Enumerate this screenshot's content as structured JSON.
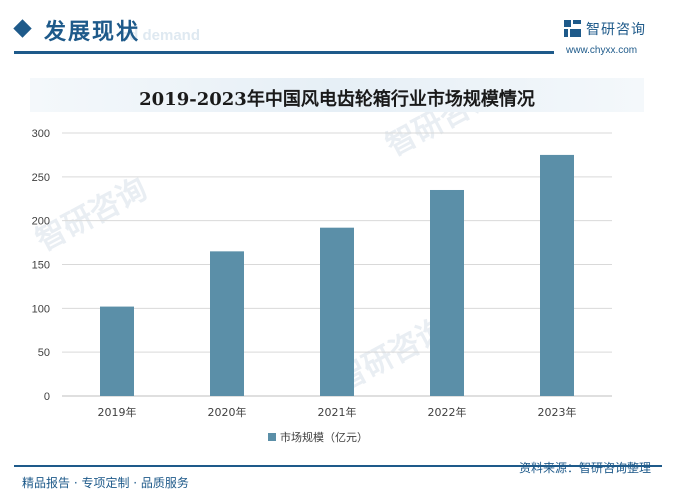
{
  "header": {
    "section_title": "发展现状",
    "section_subtitle": "nd demand",
    "brand_name": "智研咨询",
    "brand_url": "www.chyxx.com"
  },
  "watermark": {
    "text": "智研咨询"
  },
  "chart_data": {
    "type": "bar",
    "title": "2019-2023年中国风电齿轮箱行业市场规模情况",
    "categories": [
      "2019年",
      "2020年",
      "2021年",
      "2022年",
      "2023年"
    ],
    "series": [
      {
        "name": "市场规模（亿元）",
        "values": [
          102,
          165,
          192,
          235,
          275
        ],
        "color": "#5b8fa8"
      }
    ],
    "ylim": [
      0,
      300
    ],
    "yticks": [
      0,
      50,
      100,
      150,
      200,
      250,
      300
    ],
    "grid": true,
    "legend_position": "bottom"
  },
  "footer": {
    "left_text": "精品报告 · 专项定制 · 品质服务",
    "source_text": "资料来源：智研咨询整理"
  },
  "colors": {
    "brand": "#1e5a8a",
    "bar": "#5b8fa8",
    "grid": "#d9d9d9"
  }
}
